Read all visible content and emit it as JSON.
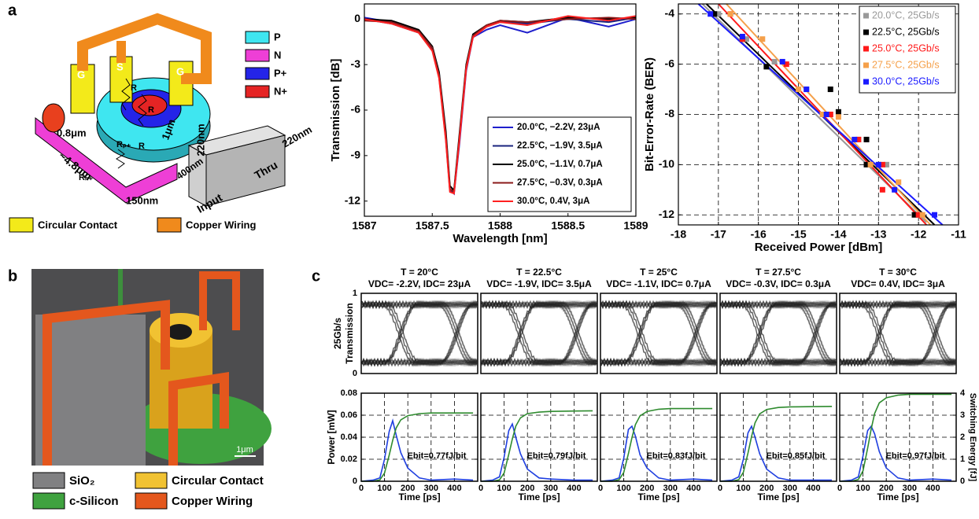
{
  "figure": {
    "panel_labels": [
      "a",
      "b",
      "c"
    ],
    "schematic": {
      "doping_legend": [
        "P",
        "N",
        "P+",
        "N+"
      ],
      "material_legend": [
        "Circular Contact",
        "Copper Wiring"
      ],
      "electrodes": [
        "G",
        "S",
        "G"
      ],
      "dimensions": [
        "220nm",
        "220nm",
        "1μm",
        "0.8μm",
        "~4.8μm",
        "150nm",
        "400nm"
      ],
      "ports": [
        "Input",
        "Thru"
      ],
      "resistors": [
        "R",
        "R",
        "R",
        "Rₙ₊",
        "Rₚ₊"
      ]
    },
    "sem": {
      "legend": [
        "SiO₂",
        "Circular Contact",
        "c-Silicon",
        "Copper Wiring"
      ],
      "scale_bar": "1μm"
    }
  },
  "chart_data": [
    {
      "type": "line",
      "xlabel": "Wavelength [nm]",
      "ylabel": "Transmission [dB]",
      "xlim": [
        1587,
        1589
      ],
      "ylim": [
        -13,
        1
      ],
      "xticks": [
        1587,
        1587.5,
        1588,
        1588.5,
        1589
      ],
      "yticks": [
        -12,
        -9,
        -6,
        -3,
        0
      ],
      "grid": false,
      "legend": "lower right",
      "x": [
        1587,
        1587.2,
        1587.4,
        1587.5,
        1587.55,
        1587.6,
        1587.63,
        1587.66,
        1587.7,
        1587.75,
        1587.8,
        1587.9,
        1588,
        1588.2,
        1588.5,
        1588.8,
        1589
      ],
      "series": [
        {
          "name": "20.0°C, −2.2V, 23μA",
          "color": "#1f1fcc",
          "values": [
            0.1,
            -0.2,
            -0.8,
            -1.9,
            -3.6,
            -7.6,
            -11.2,
            -11.5,
            -8.2,
            -3.4,
            -1.2,
            -0.7,
            -0.4,
            -0.9,
            0.1,
            -0.5,
            0
          ]
        },
        {
          "name": "22.5°C, −1.9V, 3.5μA",
          "color": "#1a237e",
          "values": [
            0,
            -0.3,
            -0.9,
            -2.0,
            -3.8,
            -7.9,
            -11.3,
            -11.4,
            -7.9,
            -3.2,
            -1.1,
            -0.5,
            -0.2,
            -0.3,
            0,
            -0.2,
            0.1
          ]
        },
        {
          "name": "25.0°C, −1.1V, 0.7μA",
          "color": "#000000",
          "values": [
            0,
            -0.1,
            -0.7,
            -1.8,
            -3.5,
            -7.4,
            -11.0,
            -11.3,
            -7.6,
            -3.0,
            -1.0,
            -0.4,
            -0.1,
            -0.2,
            0.1,
            0,
            0.1
          ]
        },
        {
          "name": "27.5°C, −0.3V, 0.3μA",
          "color": "#8b1a1a",
          "values": [
            -0.1,
            -0.2,
            -0.8,
            -1.9,
            -3.7,
            -7.7,
            -11.2,
            -11.4,
            -7.8,
            -3.1,
            -1.1,
            -0.4,
            -0.1,
            -0.2,
            0,
            0.1,
            0
          ]
        },
        {
          "name": "30.0°C,   0.4V, 3μA",
          "color": "#ff2020",
          "values": [
            0,
            -0.3,
            -0.9,
            -2.1,
            -3.9,
            -8.0,
            -11.4,
            -11.5,
            -8.0,
            -3.3,
            -1.2,
            -0.5,
            -0.2,
            -0.4,
            0.2,
            -0.1,
            0.2
          ]
        }
      ]
    },
    {
      "type": "scatter",
      "xlabel": "Received Power [dBm]",
      "ylabel": "Bit-Error-Rate (BER)",
      "xlim": [
        -18,
        -11
      ],
      "ylim": [
        -12.4,
        -3.6
      ],
      "xticks": [
        -18,
        -17,
        -16,
        -15,
        -14,
        -13,
        -12,
        -11
      ],
      "yticks": [
        -12,
        -10,
        -8,
        -6,
        -4
      ],
      "grid": true,
      "legend": "upper right",
      "series": [
        {
          "name": "20.0°C, 25Gb/s",
          "color": "#999999",
          "x": [
            -17,
            -16.3,
            -15.6,
            -14.8,
            -14.2,
            -13.5,
            -12.8,
            -12
          ],
          "values": [
            -4,
            -5,
            -5.9,
            -7,
            -8,
            -9,
            -10,
            -12
          ],
          "fit_x": [
            -17.4,
            -11.8
          ],
          "fit_values": [
            -3.6,
            -12.3
          ]
        },
        {
          "name": "22.5°C, 25Gb/s",
          "color": "#000000",
          "x": [
            -17.1,
            -16.4,
            -15.8,
            -14.2,
            -14.0,
            -13.3,
            -13.3,
            -12.1
          ],
          "values": [
            -4,
            -5,
            -6.1,
            -7,
            -7.9,
            -9,
            -10,
            -12
          ],
          "fit_x": [
            -17.3,
            -11.6
          ],
          "fit_values": [
            -3.6,
            -12.4
          ]
        },
        {
          "name": "25.0°C, 25Gb/s",
          "color": "#ff1a1a",
          "x": [
            -16.7,
            -16.4,
            -15.3,
            -14.2,
            -13.5,
            -12.9,
            -12.9,
            -12
          ],
          "values": [
            -4,
            -5,
            -6,
            -8,
            -9,
            -10,
            -11,
            -12
          ],
          "fit_x": [
            -17.0,
            -11.8
          ],
          "fit_values": [
            -3.6,
            -12.4
          ]
        },
        {
          "name": "27.5°C, 25Gb/s",
          "color": "#f5a04a",
          "x": [
            -16.7,
            -15.9,
            -15,
            -14.4,
            -14,
            -13.2,
            -12.5,
            -11.9
          ],
          "values": [
            -4,
            -5,
            -7,
            -8,
            -8.1,
            -10,
            -10.7,
            -12
          ],
          "fit_x": [
            -16.8,
            -11.7
          ],
          "fit_values": [
            -3.6,
            -12.4
          ]
        },
        {
          "name": "30.0°C, 25Gb/s",
          "color": "#1a1aff",
          "x": [
            -17.2,
            -16.4,
            -15.4,
            -14.8,
            -14.3,
            -13.6,
            -13,
            -12.6,
            -11.6
          ],
          "values": [
            -4,
            -4.9,
            -5.9,
            -7,
            -8,
            -9,
            -10,
            -11,
            -12
          ],
          "fit_x": [
            -17.5,
            -11.4
          ],
          "fit_values": [
            -3.6,
            -12.4
          ]
        }
      ]
    },
    {
      "type": "eye",
      "title": "T = 20°C",
      "subtitle": "VDC= -2.2V, IDC= 23μA",
      "ylabel": [
        "25Gb/s",
        "Transmission"
      ],
      "ylim": [
        0,
        1
      ],
      "yticks": [
        0,
        1
      ]
    },
    {
      "type": "eye",
      "title": "T = 22.5°C",
      "subtitle": "VDC= -1.9V, IDC= 3.5μA",
      "ylim": [
        0,
        1
      ]
    },
    {
      "type": "eye",
      "title": "T = 25°C",
      "subtitle": "VDC= -1.1V, IDC= 0.7μA",
      "ylim": [
        0,
        1
      ]
    },
    {
      "type": "eye",
      "title": "T = 27.5°C",
      "subtitle": "VDC= -0.3V, IDC= 0.3μA",
      "ylim": [
        0,
        1
      ]
    },
    {
      "type": "eye",
      "title": "T = 30°C",
      "subtitle": "VDC= 0.4V, IDC= 3μA",
      "ylim": [
        0,
        1
      ]
    },
    {
      "type": "line",
      "xlabel": "Time [ps]",
      "ylabel": "Power [mW]",
      "annotation": "Ebit=0.77fJ/bit",
      "xlim": [
        0,
        500
      ],
      "ylim": [
        0,
        0.08
      ],
      "y2lim": [
        0,
        4
      ],
      "xticks": [
        0,
        100,
        200,
        300,
        400
      ],
      "yticks": [
        0,
        0.02,
        0.04,
        0.06,
        0.08
      ],
      "y2ticks": [
        0,
        1,
        2,
        3,
        4
      ],
      "show_yticklabels": true,
      "show_y2ticklabels": false,
      "grid": true,
      "x": [
        0,
        50,
        80,
        100,
        120,
        135,
        150,
        170,
        200,
        250,
        300,
        400,
        480
      ],
      "series": [
        {
          "color": "#1f3fe0",
          "values": [
            0,
            0.001,
            0.003,
            0.02,
            0.045,
            0.055,
            0.042,
            0.026,
            0.012,
            0.003,
            0.001,
            0.002,
            0.001
          ]
        },
        {
          "color": "#2e8b2e",
          "axis": "y2",
          "values": [
            0,
            0,
            0.06,
            0.37,
            1.18,
            1.86,
            2.42,
            2.79,
            2.98,
            3.07,
            3.1,
            3.1,
            3.1
          ]
        }
      ]
    },
    {
      "type": "line",
      "xlabel": "Time [ps]",
      "annotation": "Ebit=0.79fJ/bit",
      "xlim": [
        0,
        500
      ],
      "ylim": [
        0,
        0.08
      ],
      "y2lim": [
        0,
        4
      ],
      "xticks": [
        0,
        100,
        200,
        300,
        400
      ],
      "yticks": [
        0,
        0.02,
        0.04,
        0.06,
        0.08
      ],
      "y2ticks": [
        0,
        1,
        2,
        3,
        4
      ],
      "show_yticklabels": false,
      "show_y2ticklabels": false,
      "grid": true,
      "x": [
        0,
        50,
        80,
        100,
        120,
        135,
        150,
        170,
        200,
        250,
        300,
        400,
        480
      ],
      "series": [
        {
          "color": "#1f3fe0",
          "values": [
            0,
            0.001,
            0.004,
            0.022,
            0.046,
            0.052,
            0.04,
            0.025,
            0.011,
            0.003,
            0.002,
            0.001,
            0.001
          ]
        },
        {
          "color": "#2e8b2e",
          "axis": "y2",
          "values": [
            0,
            0,
            0.06,
            0.38,
            1.22,
            1.92,
            2.5,
            2.88,
            3.07,
            3.14,
            3.17,
            3.19,
            3.2
          ]
        }
      ]
    },
    {
      "type": "line",
      "xlabel": "Time [ps]",
      "annotation": "Ebit=0.83fJ/bit",
      "xlim": [
        0,
        500
      ],
      "ylim": [
        0,
        0.08
      ],
      "y2lim": [
        0,
        4
      ],
      "xticks": [
        0,
        100,
        200,
        300,
        400
      ],
      "yticks": [
        0,
        0.02,
        0.04,
        0.06,
        0.08
      ],
      "y2ticks": [
        0,
        1,
        2,
        3,
        4
      ],
      "show_yticklabels": false,
      "show_y2ticklabels": false,
      "grid": true,
      "x": [
        0,
        50,
        80,
        100,
        120,
        135,
        150,
        170,
        200,
        250,
        300,
        400,
        480
      ],
      "series": [
        {
          "color": "#1f3fe0",
          "values": [
            0,
            0.001,
            0.003,
            0.021,
            0.047,
            0.05,
            0.041,
            0.024,
            0.012,
            0.003,
            0.001,
            0.002,
            0.001
          ]
        },
        {
          "color": "#2e8b2e",
          "axis": "y2",
          "values": [
            0,
            0,
            0.07,
            0.4,
            1.25,
            1.98,
            2.57,
            2.97,
            3.17,
            3.27,
            3.3,
            3.3,
            3.3
          ]
        }
      ]
    },
    {
      "type": "line",
      "xlabel": "Time [ps]",
      "annotation": "Ebit=0.85fJ/bit",
      "xlim": [
        0,
        500
      ],
      "ylim": [
        0,
        0.08
      ],
      "y2lim": [
        0,
        4
      ],
      "xticks": [
        0,
        100,
        200,
        300,
        400
      ],
      "yticks": [
        0,
        0.02,
        0.04,
        0.06,
        0.08
      ],
      "y2ticks": [
        0,
        1,
        2,
        3,
        4
      ],
      "show_yticklabels": false,
      "show_y2ticklabels": false,
      "grid": true,
      "x": [
        0,
        50,
        80,
        100,
        120,
        135,
        150,
        170,
        200,
        250,
        300,
        400,
        480
      ],
      "series": [
        {
          "color": "#1f3fe0",
          "values": [
            0,
            0.001,
            0.004,
            0.02,
            0.044,
            0.05,
            0.04,
            0.025,
            0.011,
            0.003,
            0.001,
            0.001,
            0.001
          ]
        },
        {
          "color": "#2e8b2e",
          "axis": "y2",
          "values": [
            0,
            0,
            0.07,
            0.41,
            1.29,
            2.04,
            2.65,
            3.06,
            3.26,
            3.35,
            3.38,
            3.39,
            3.4
          ]
        }
      ]
    },
    {
      "type": "line",
      "xlabel": "Time [ps]",
      "y2label": "Switching Energy [fJ]",
      "annotation": "Ebit=0.97fJ/bit",
      "xlim": [
        0,
        500
      ],
      "ylim": [
        0,
        0.08
      ],
      "y2lim": [
        0,
        4
      ],
      "xticks": [
        0,
        100,
        200,
        300,
        400
      ],
      "yticks": [
        0,
        0.02,
        0.04,
        0.06,
        0.08
      ],
      "y2ticks": [
        0,
        1,
        2,
        3,
        4
      ],
      "show_yticklabels": false,
      "show_y2ticklabels": true,
      "grid": true,
      "x": [
        0,
        50,
        80,
        100,
        120,
        135,
        150,
        170,
        200,
        250,
        300,
        400,
        480
      ],
      "series": [
        {
          "color": "#1f3fe0",
          "values": [
            0,
            0.001,
            0.004,
            0.023,
            0.046,
            0.05,
            0.043,
            0.027,
            0.012,
            0.003,
            0.001,
            0.002,
            0.001
          ]
        },
        {
          "color": "#2e8b2e",
          "axis": "y2",
          "values": [
            0,
            0,
            0.08,
            0.47,
            1.5,
            2.37,
            3.08,
            3.56,
            3.79,
            3.91,
            3.95,
            3.95,
            3.95
          ]
        }
      ]
    }
  ]
}
